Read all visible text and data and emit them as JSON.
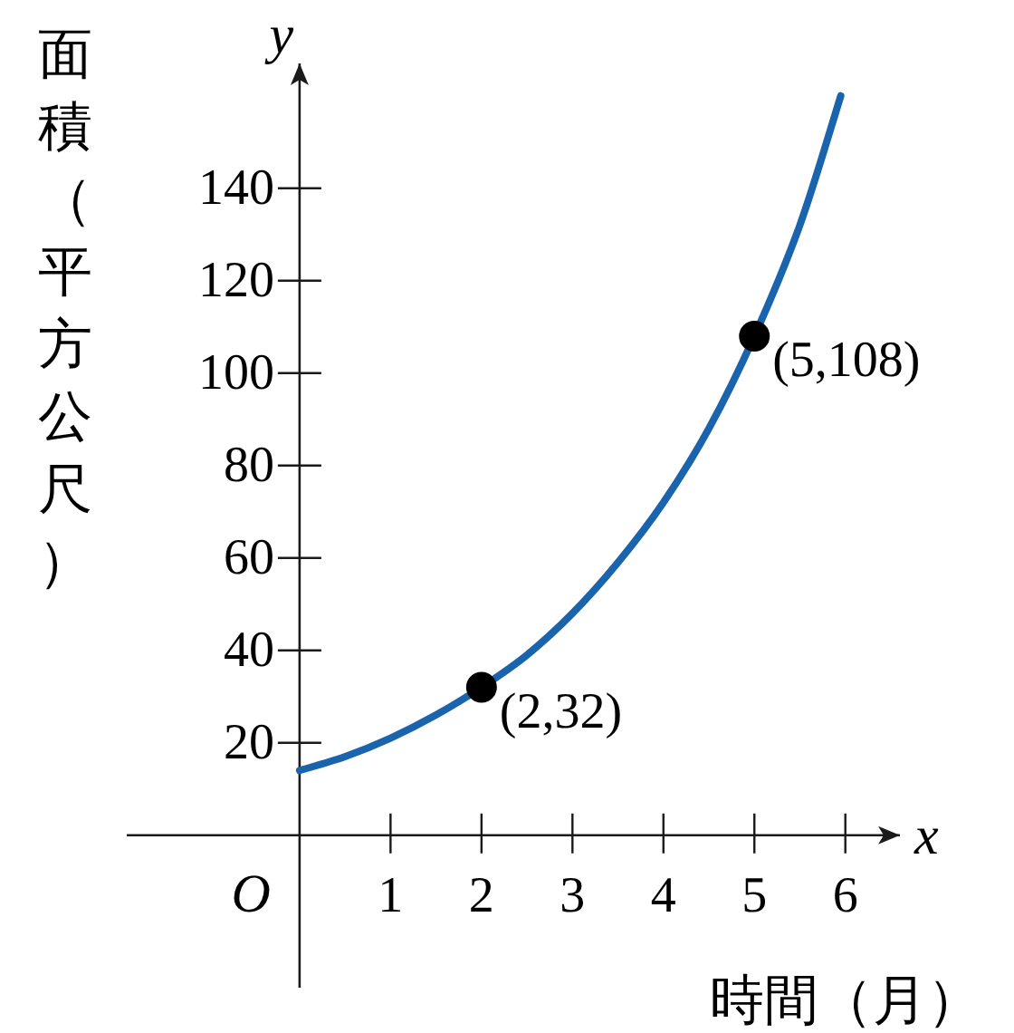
{
  "chart_data": {
    "type": "line",
    "xlabel": "時間（月）",
    "ylabel": "面積（平方公尺）",
    "xlim": [
      -1.9,
      6.6
    ],
    "ylim": [
      -33,
      167
    ],
    "xticks": [
      1,
      2,
      3,
      4,
      5,
      6
    ],
    "yticks": [
      20,
      40,
      60,
      80,
      100,
      120,
      140
    ],
    "grid": false,
    "series": [
      {
        "color": "#1a64ad",
        "line_style": "solid",
        "marker": "none",
        "x": [
          0,
          0.5,
          1,
          1.5,
          2,
          2.5,
          3,
          3.5,
          4,
          4.5,
          5,
          5.5,
          5.95
        ],
        "values": [
          14,
          17,
          21,
          26,
          32,
          39,
          48,
          59,
          72,
          88,
          108,
          132,
          160
        ]
      },
      {
        "type": "scatter",
        "color": "#000000",
        "marker": "circle",
        "x": [
          2,
          5
        ],
        "values": [
          32,
          108
        ]
      }
    ],
    "annotations": [
      "x",
      "y",
      "O",
      {
        "text": "(2,32)",
        "x": 2,
        "y": 32
      },
      {
        "text": "(5,108)",
        "x": 5,
        "y": 108
      }
    ]
  }
}
